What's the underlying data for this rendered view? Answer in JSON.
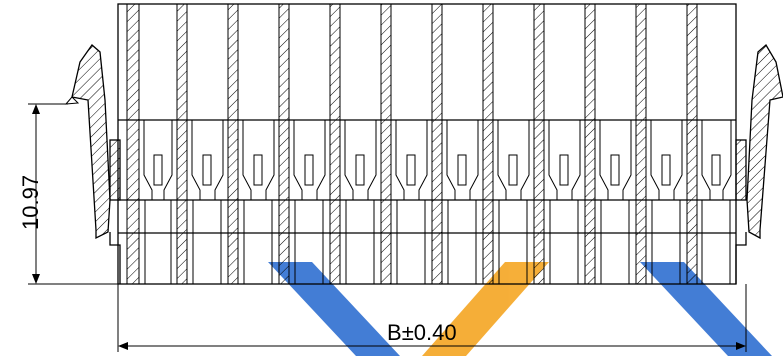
{
  "drawing": {
    "contact_count": 12,
    "height_dimension": {
      "label": "10.97"
    },
    "width_dimension": {
      "prefix": "B",
      "pm": "±",
      "value": "0.40"
    },
    "colors": {
      "line": "#000000",
      "watermark_blue": "#2f6fd0",
      "watermark_orange": "#f5a623",
      "background": "#ffffff"
    }
  }
}
